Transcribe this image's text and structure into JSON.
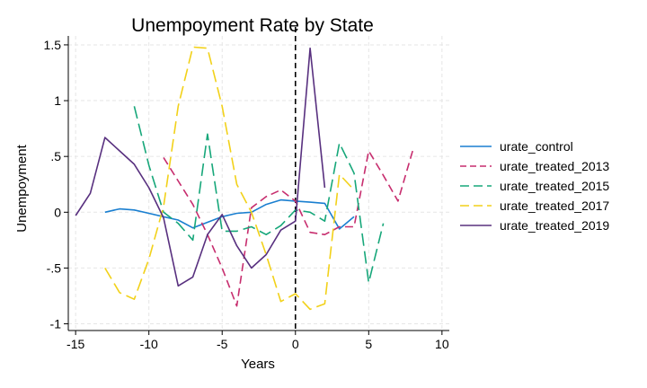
{
  "chart_data": {
    "type": "line",
    "title": "Unempoyment Rate by State",
    "xlabel": "Years",
    "ylabel": "Unempoyment",
    "xlim": [
      -15.5,
      10.5
    ],
    "ylim": [
      -1.06,
      1.58
    ],
    "xticks": [
      -15,
      -10,
      -5,
      0,
      5,
      10
    ],
    "xtick_labels": [
      "-15",
      "-10",
      "-5",
      "0",
      "5",
      "10"
    ],
    "yticks": [
      1.5,
      1,
      0.5,
      0,
      -0.5,
      -1
    ],
    "ytick_labels": [
      "1.5",
      "1",
      ".5",
      "0",
      "-.5",
      "-1"
    ],
    "grid": true,
    "legend_position": "right",
    "reference_line": {
      "x": 0,
      "style": "dashed",
      "color": "#000000"
    },
    "series": [
      {
        "name": "urate_control",
        "color": "#1a7fd0",
        "dash": "solid",
        "x": [
          -13,
          -12,
          -11,
          -10,
          -9,
          -8,
          -7,
          -6,
          -5,
          -4,
          -3,
          -2,
          -1,
          0,
          1,
          2,
          3,
          4
        ],
        "y": [
          0.0,
          0.03,
          0.02,
          -0.01,
          -0.04,
          -0.07,
          -0.14,
          -0.09,
          -0.04,
          -0.01,
          0.0,
          0.07,
          0.11,
          0.1,
          0.09,
          0.08,
          -0.15,
          -0.04
        ]
      },
      {
        "name": "urate_treated_2013",
        "color": "#c72d6e",
        "dash": "dashed",
        "x": [
          -9,
          -8,
          -7,
          -6,
          -5,
          -4,
          -3,
          -2,
          -1,
          0,
          1,
          2,
          3,
          4,
          5,
          6,
          7,
          8
        ],
        "y": [
          0.49,
          0.28,
          0.07,
          -0.2,
          -0.5,
          -0.84,
          0.04,
          0.14,
          0.2,
          0.1,
          -0.18,
          -0.2,
          -0.13,
          -0.13,
          0.55,
          0.33,
          0.1,
          0.55
        ]
      },
      {
        "name": "urate_treated_2015",
        "color": "#17a77a",
        "dash": "longdash",
        "x": [
          -11,
          -10,
          -9,
          -8,
          -7,
          -6,
          -5,
          -4,
          -3,
          -2,
          -1,
          0,
          1,
          2,
          3,
          4,
          5,
          6
        ],
        "y": [
          0.95,
          0.42,
          0.0,
          -0.1,
          -0.25,
          0.7,
          -0.17,
          -0.17,
          -0.13,
          -0.2,
          -0.12,
          0.02,
          0.0,
          -0.08,
          0.62,
          0.35,
          -0.63,
          -0.1
        ]
      },
      {
        "name": "urate_treated_2017",
        "color": "#f2d119",
        "dash": "longdash",
        "x": [
          -13,
          -12,
          -11,
          -10,
          -9,
          -8,
          -7,
          -6,
          -5,
          -4,
          -3,
          -2,
          -1,
          0,
          1,
          2,
          3,
          4
        ],
        "y": [
          -0.5,
          -0.72,
          -0.78,
          -0.42,
          0.05,
          0.95,
          1.48,
          1.47,
          0.95,
          0.25,
          0.0,
          -0.38,
          -0.8,
          -0.73,
          -0.87,
          -0.82,
          0.34,
          0.2
        ]
      },
      {
        "name": "urate_treated_2019",
        "color": "#58307f",
        "dash": "solid",
        "x": [
          -15,
          -14,
          -13,
          -12,
          -11,
          -10,
          -9,
          -8,
          -7,
          -6,
          -5,
          -4,
          -3,
          -2,
          -1,
          0,
          1,
          2
        ],
        "y": [
          -0.03,
          0.17,
          0.67,
          0.55,
          0.43,
          0.22,
          -0.05,
          -0.66,
          -0.58,
          -0.2,
          -0.02,
          -0.3,
          -0.5,
          -0.38,
          -0.16,
          -0.08,
          1.47,
          0.22
        ]
      }
    ]
  }
}
